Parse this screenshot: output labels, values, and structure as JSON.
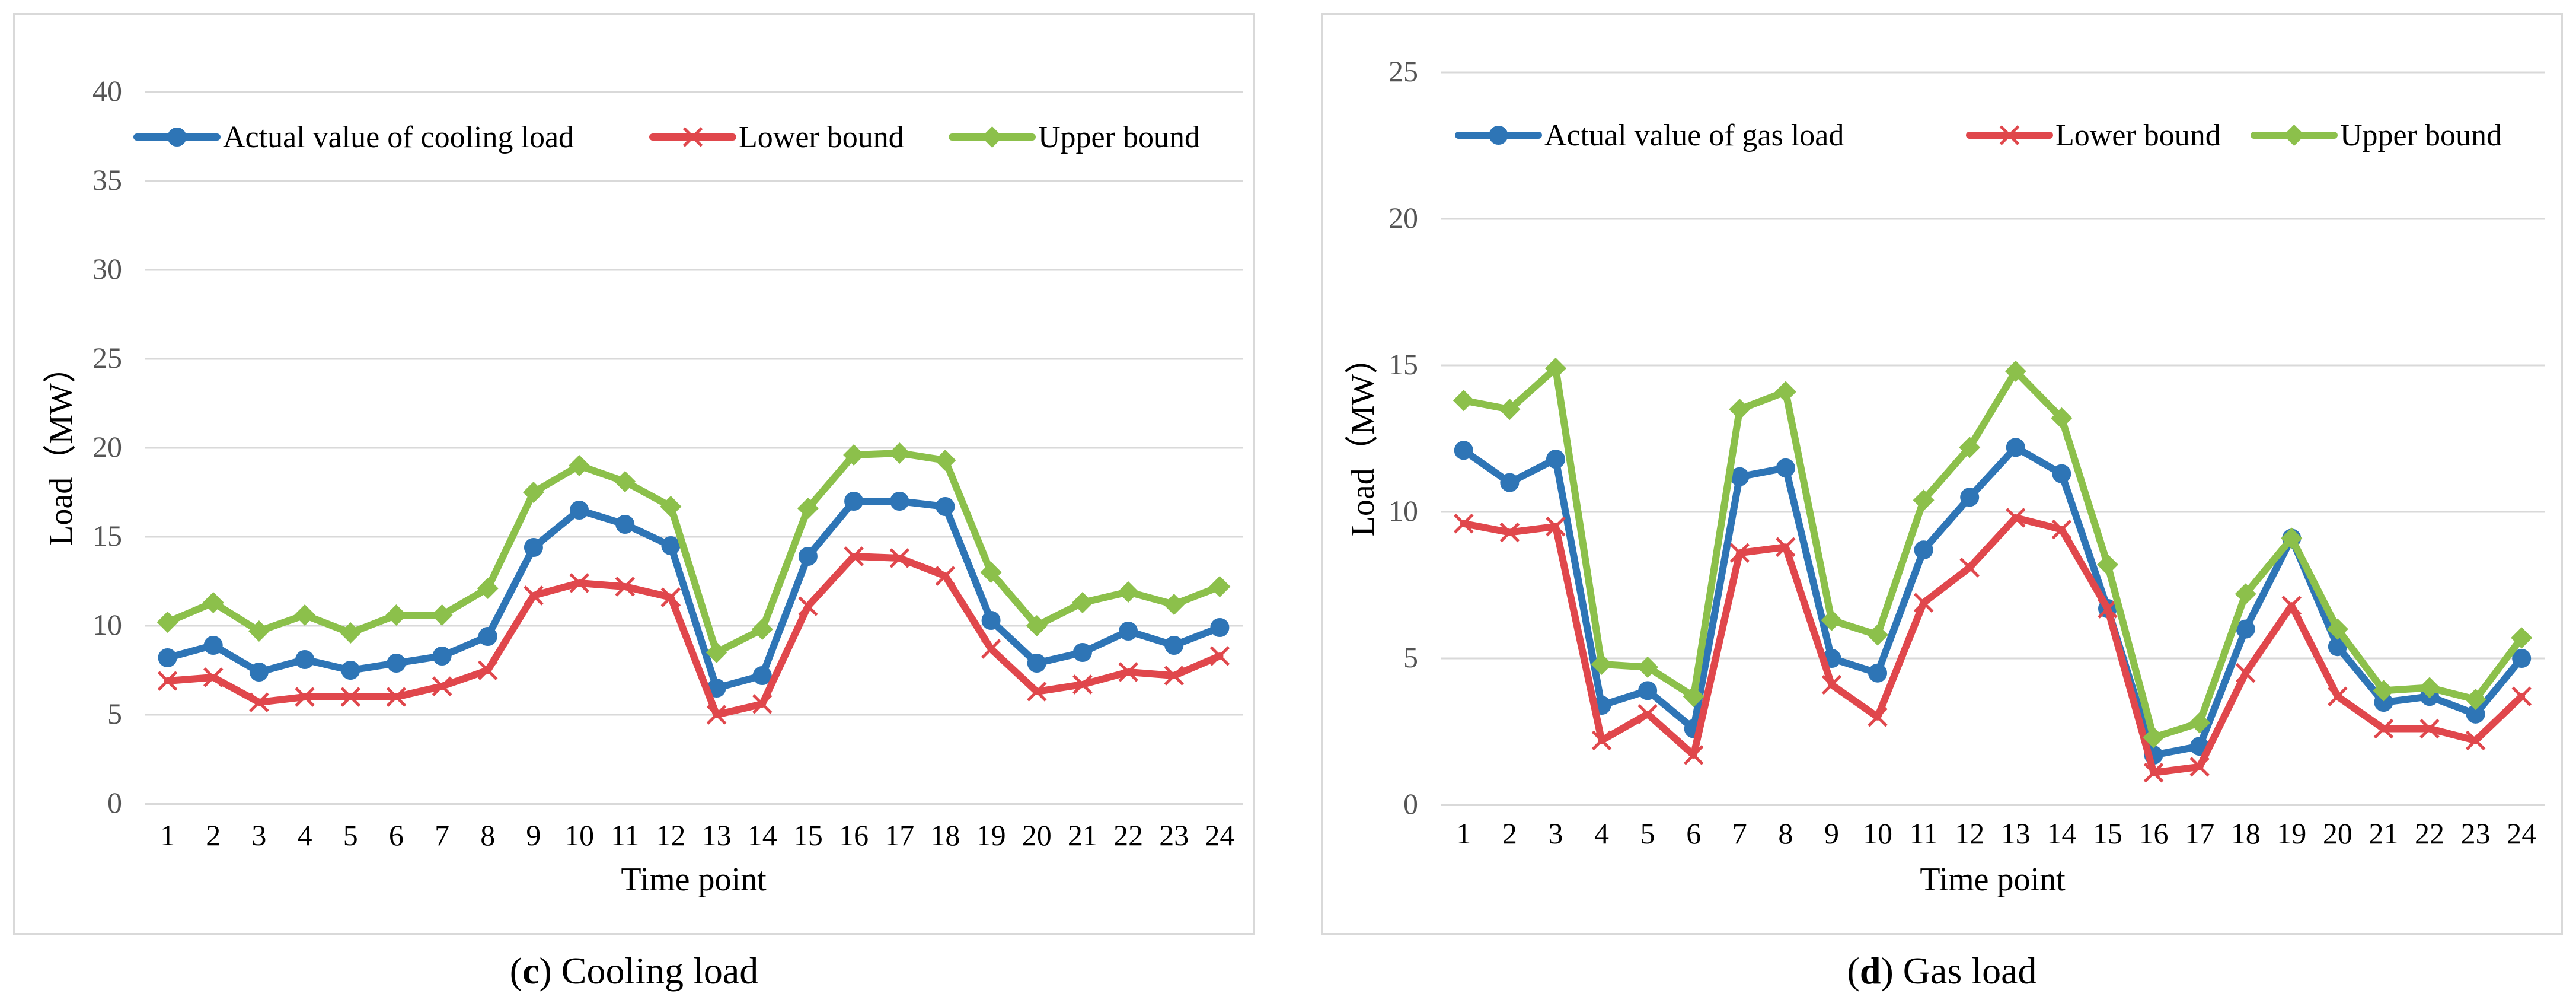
{
  "colors": {
    "actual": "#2e75b6",
    "lower": "#e0474c",
    "upper": "#8cc04b",
    "grid": "#d9d9d9",
    "text": "#000000",
    "tick": "#555555"
  },
  "captions": {
    "c": {
      "letter": "c",
      "text": " Cooling load"
    },
    "d": {
      "letter": "d",
      "text": " Gas load"
    }
  },
  "chart_data": [
    {
      "id": "c",
      "type": "line",
      "title": "",
      "xlabel": "Time point",
      "ylabel": "Load（MW）",
      "ylim": [
        0,
        40
      ],
      "yticks": [
        0,
        5,
        10,
        15,
        20,
        25,
        30,
        35,
        40
      ],
      "grid": true,
      "legend": "top",
      "x": [
        "1",
        "2",
        "3",
        "4",
        "5",
        "6",
        "7",
        "8",
        "9",
        "10",
        "11",
        "12",
        "13",
        "14",
        "15",
        "16",
        "17",
        "18",
        "19",
        "20",
        "21",
        "22",
        "23",
        "24"
      ],
      "series": [
        {
          "name": "Actual value of cooling load",
          "key": "actual",
          "marker": "circle",
          "values": [
            8.2,
            8.9,
            7.4,
            8.1,
            7.5,
            7.9,
            8.3,
            9.4,
            14.4,
            16.5,
            15.7,
            14.5,
            6.5,
            7.2,
            13.9,
            17.0,
            17.0,
            16.7,
            10.3,
            7.9,
            8.5,
            9.7,
            8.9,
            9.9
          ]
        },
        {
          "name": "Lower bound",
          "key": "lower",
          "marker": "x",
          "values": [
            6.9,
            7.1,
            5.7,
            6.0,
            6.0,
            6.0,
            6.6,
            7.5,
            11.7,
            12.4,
            12.2,
            11.6,
            5.0,
            5.6,
            11.1,
            13.9,
            13.8,
            12.8,
            8.7,
            6.3,
            6.7,
            7.4,
            7.2,
            8.3
          ]
        },
        {
          "name": "Upper bound",
          "key": "upper",
          "marker": "diamond",
          "values": [
            10.2,
            11.3,
            9.7,
            10.6,
            9.6,
            10.6,
            10.6,
            12.1,
            17.5,
            19.0,
            18.1,
            16.7,
            8.5,
            9.8,
            16.6,
            19.6,
            19.7,
            19.3,
            13.0,
            10.0,
            11.3,
            11.9,
            11.2,
            12.2
          ]
        }
      ]
    },
    {
      "id": "d",
      "type": "line",
      "title": "",
      "xlabel": "Time point",
      "ylabel": "Load（MW）",
      "ylim": [
        0,
        25
      ],
      "yticks": [
        0,
        5,
        10,
        15,
        20,
        25
      ],
      "grid": true,
      "legend": "top",
      "x": [
        "1",
        "2",
        "3",
        "4",
        "5",
        "6",
        "7",
        "8",
        "9",
        "10",
        "11",
        "12",
        "13",
        "14",
        "15",
        "16",
        "17",
        "18",
        "19",
        "20",
        "21",
        "22",
        "23",
        "24"
      ],
      "series": [
        {
          "name": "Actual value of gas load",
          "key": "actual",
          "marker": "circle",
          "values": [
            12.1,
            11.0,
            11.8,
            3.4,
            3.9,
            2.6,
            11.2,
            11.5,
            5.0,
            4.5,
            8.7,
            10.5,
            12.2,
            11.3,
            6.7,
            1.7,
            2.0,
            6.0,
            9.1,
            5.4,
            3.5,
            3.7,
            3.1,
            5.0
          ]
        },
        {
          "name": "Lower bound",
          "key": "lower",
          "marker": "x",
          "values": [
            9.6,
            9.3,
            9.5,
            2.2,
            3.1,
            1.7,
            8.6,
            8.8,
            4.1,
            3.0,
            6.9,
            8.1,
            9.8,
            9.4,
            6.7,
            1.1,
            1.3,
            4.5,
            6.8,
            3.7,
            2.6,
            2.6,
            2.2,
            3.7
          ]
        },
        {
          "name": "Upper bound",
          "key": "upper",
          "marker": "diamond",
          "values": [
            13.8,
            13.5,
            14.9,
            4.8,
            4.7,
            3.7,
            13.5,
            14.1,
            6.3,
            5.8,
            10.4,
            12.2,
            14.8,
            13.2,
            8.2,
            2.3,
            2.8,
            7.2,
            9.1,
            6.0,
            3.9,
            4.0,
            3.6,
            5.7
          ]
        }
      ]
    }
  ]
}
